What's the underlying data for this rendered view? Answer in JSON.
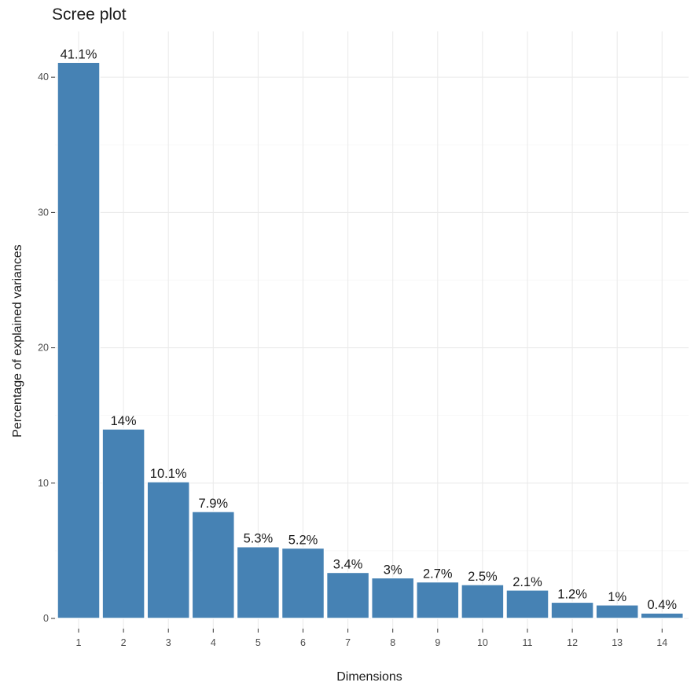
{
  "colors": {
    "bar": "#4682b4",
    "grid": "#ebebeb",
    "text": "#1a1a1a",
    "tick_text": "#4d4d4d"
  },
  "chart_data": {
    "type": "bar",
    "title": "Scree plot",
    "xlabel": "Dimensions",
    "ylabel": "Percentage of explained variances",
    "categories": [
      "1",
      "2",
      "3",
      "4",
      "5",
      "6",
      "7",
      "8",
      "9",
      "10",
      "11",
      "12",
      "13",
      "14"
    ],
    "values": [
      41.1,
      14,
      10.1,
      7.9,
      5.3,
      5.2,
      3.4,
      3,
      2.7,
      2.5,
      2.1,
      1.2,
      1,
      0.4
    ],
    "data_labels": [
      "41.1%",
      "14%",
      "10.1%",
      "7.9%",
      "5.3%",
      "5.2%",
      "3.4%",
      "3%",
      "2.7%",
      "2.5%",
      "2.1%",
      "1.2%",
      "1%",
      "0.4%"
    ],
    "yticks": [
      0,
      10,
      20,
      30,
      40
    ],
    "ytick_labels": [
      "0",
      "10",
      "20",
      "30",
      "40"
    ],
    "ylim": [
      0,
      45
    ],
    "grid": true,
    "legend": "none"
  }
}
